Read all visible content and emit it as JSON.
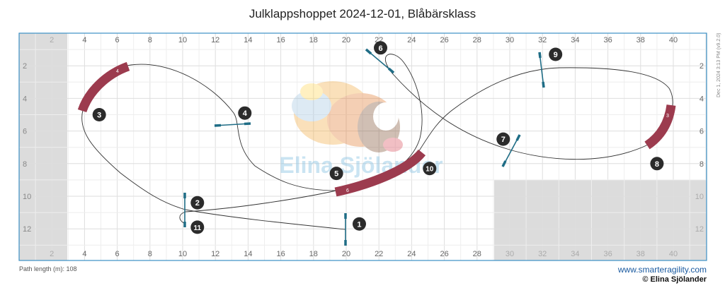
{
  "title": "Julklappshoppet 2024-12-01, Blåbärsklass",
  "footer": {
    "path_length": "Path length (m): 108",
    "website": "www.smarteragility.com",
    "copyright": "© Elina Sjölander"
  },
  "side_note": "Dec 1, 2024 3:13 PM  (v9.2.0)",
  "watermark": {
    "text": "Elina Sjölander"
  },
  "colors": {
    "tunnel": "#9c3b4e",
    "jump": "#1f6d86",
    "badge": "#2b2b2b",
    "grid": "#e6e6e6",
    "border": "#3b8fc4",
    "shade": "#dcdcdc"
  },
  "axes": {
    "top": [
      "2",
      "4",
      "6",
      "8",
      "10",
      "12",
      "14",
      "16",
      "18",
      "20",
      "22",
      "24",
      "26",
      "28",
      "30",
      "32",
      "34",
      "36",
      "38",
      "40"
    ],
    "bottom": [
      "2",
      "4",
      "6",
      "8",
      "10",
      "12",
      "14",
      "16",
      "18",
      "20",
      "22",
      "24",
      "26",
      "28",
      "30",
      "32",
      "34",
      "36",
      "38",
      "40"
    ],
    "left": [
      "2",
      "4",
      "6",
      "8",
      "10",
      "12"
    ],
    "right": [
      "2",
      "4",
      "6",
      "8",
      "10",
      "12"
    ]
  },
  "obstacles": {
    "jumps": [
      {
        "label": "1",
        "x": 20,
        "y": 12.2
      },
      {
        "label": "2/11",
        "x": 10.1,
        "y": 11
      },
      {
        "label": "4",
        "x": 13.2,
        "y": 5.7
      },
      {
        "label": "6",
        "x": 22.2,
        "y": 1.5
      },
      {
        "label": "7",
        "x": 28.6,
        "y": 7.1
      },
      {
        "label": "9",
        "x": 32,
        "y": 2.3
      }
    ],
    "tunnels": [
      {
        "label": "4",
        "numbers": [
          "3"
        ]
      },
      {
        "label": "6",
        "numbers": [
          "5",
          "10"
        ]
      },
      {
        "label": "3",
        "numbers": [
          "8"
        ]
      }
    ]
  },
  "numbers": [
    {
      "n": "1",
      "x": 20.8,
      "y": 11.7
    },
    {
      "n": "2",
      "x": 10.9,
      "y": 10.4
    },
    {
      "n": "3",
      "x": 4.9,
      "y": 5.0
    },
    {
      "n": "4",
      "x": 13.8,
      "y": 4.9
    },
    {
      "n": "5",
      "x": 19.4,
      "y": 8.6
    },
    {
      "n": "6",
      "x": 22.1,
      "y": 0.9
    },
    {
      "n": "7",
      "x": 29.6,
      "y": 6.5
    },
    {
      "n": "8",
      "x": 39.0,
      "y": 8.0
    },
    {
      "n": "9",
      "x": 32.8,
      "y": 1.3
    },
    {
      "n": "10",
      "x": 25.1,
      "y": 8.3
    },
    {
      "n": "11",
      "x": 10.9,
      "y": 11.9
    }
  ]
}
